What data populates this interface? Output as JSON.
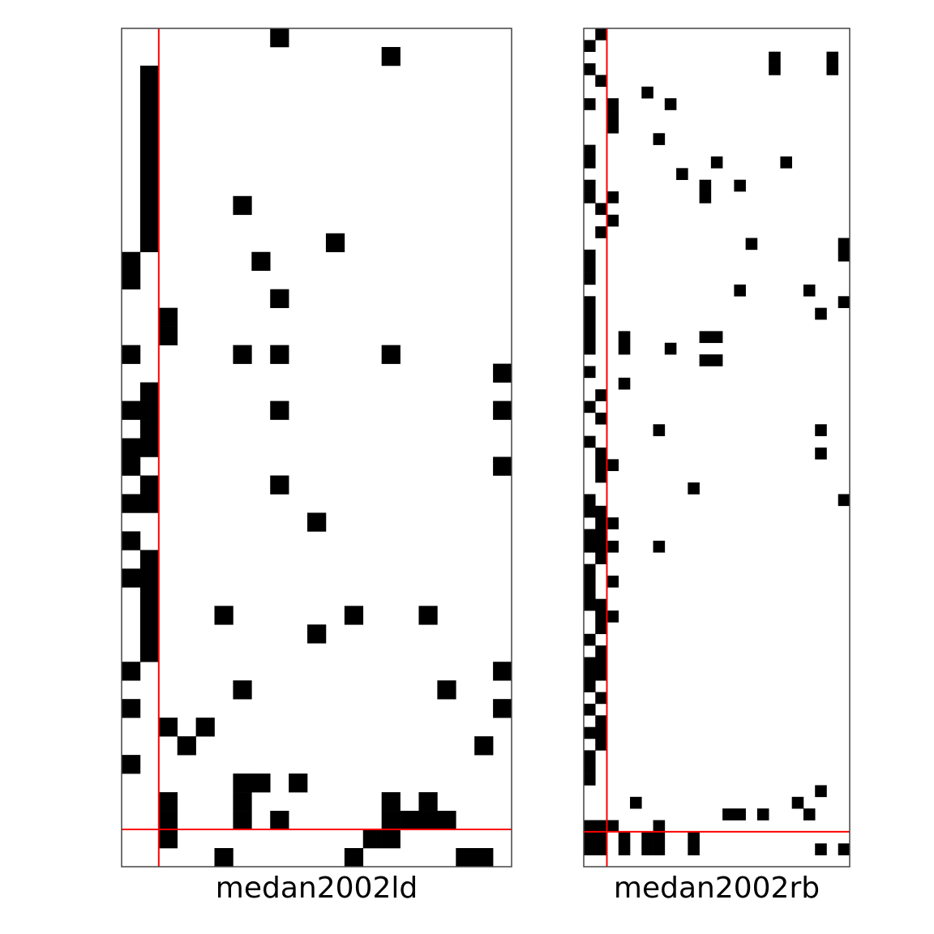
{
  "colors": {
    "cell": "#000000",
    "divider": "#ff0000",
    "frame": "#444444",
    "background": "#ffffff"
  },
  "chart_data": [
    {
      "type": "heatmap",
      "title": "medan2002ld",
      "n_rows": 45,
      "n_cols": 21,
      "row_split": 43,
      "col_split": 2,
      "cells": [
        [
          0,
          8
        ],
        [
          1,
          14
        ],
        [
          2,
          1
        ],
        [
          3,
          1
        ],
        [
          4,
          1
        ],
        [
          5,
          1
        ],
        [
          6,
          1
        ],
        [
          7,
          1
        ],
        [
          8,
          1
        ],
        [
          9,
          1
        ],
        [
          9,
          6
        ],
        [
          10,
          1
        ],
        [
          11,
          1
        ],
        [
          11,
          11
        ],
        [
          12,
          0
        ],
        [
          12,
          7
        ],
        [
          13,
          0
        ],
        [
          14,
          8
        ],
        [
          15,
          2
        ],
        [
          16,
          2
        ],
        [
          17,
          0
        ],
        [
          17,
          6
        ],
        [
          17,
          8
        ],
        [
          17,
          14
        ],
        [
          18,
          20
        ],
        [
          19,
          1
        ],
        [
          20,
          0
        ],
        [
          20,
          1
        ],
        [
          20,
          8
        ],
        [
          20,
          20
        ],
        [
          21,
          1
        ],
        [
          22,
          0
        ],
        [
          22,
          1
        ],
        [
          23,
          0
        ],
        [
          23,
          20
        ],
        [
          24,
          1
        ],
        [
          24,
          8
        ],
        [
          25,
          0
        ],
        [
          25,
          1
        ],
        [
          26,
          10
        ],
        [
          27,
          0
        ],
        [
          28,
          1
        ],
        [
          29,
          0
        ],
        [
          29,
          1
        ],
        [
          30,
          1
        ],
        [
          31,
          1
        ],
        [
          31,
          5
        ],
        [
          31,
          12
        ],
        [
          31,
          16
        ],
        [
          32,
          1
        ],
        [
          32,
          10
        ],
        [
          33,
          1
        ],
        [
          34,
          0
        ],
        [
          34,
          20
        ],
        [
          35,
          6
        ],
        [
          35,
          17
        ],
        [
          36,
          0
        ],
        [
          36,
          20
        ],
        [
          37,
          2
        ],
        [
          37,
          4
        ],
        [
          38,
          3
        ],
        [
          38,
          19
        ],
        [
          39,
          0
        ],
        [
          40,
          6
        ],
        [
          40,
          7
        ],
        [
          40,
          9
        ],
        [
          41,
          2
        ],
        [
          41,
          6
        ],
        [
          41,
          14
        ],
        [
          41,
          16
        ],
        [
          42,
          2
        ],
        [
          42,
          6
        ],
        [
          42,
          8
        ],
        [
          42,
          14
        ],
        [
          42,
          15
        ],
        [
          42,
          16
        ],
        [
          42,
          17
        ],
        [
          43,
          2
        ],
        [
          43,
          13
        ],
        [
          43,
          14
        ],
        [
          44,
          5
        ],
        [
          44,
          12
        ],
        [
          44,
          18
        ],
        [
          44,
          19
        ]
      ]
    },
    {
      "type": "heatmap",
      "title": "medan2002rb",
      "n_rows": 72,
      "n_cols": 23,
      "row_split": 69,
      "col_split": 2,
      "cells": [
        [
          0,
          1
        ],
        [
          1,
          0
        ],
        [
          2,
          16
        ],
        [
          2,
          21
        ],
        [
          3,
          0
        ],
        [
          3,
          16
        ],
        [
          3,
          21
        ],
        [
          4,
          1
        ],
        [
          5,
          5
        ],
        [
          6,
          0
        ],
        [
          6,
          2
        ],
        [
          6,
          7
        ],
        [
          7,
          2
        ],
        [
          8,
          2
        ],
        [
          9,
          6
        ],
        [
          10,
          0
        ],
        [
          11,
          0
        ],
        [
          11,
          11
        ],
        [
          11,
          17
        ],
        [
          12,
          8
        ],
        [
          13,
          0
        ],
        [
          13,
          10
        ],
        [
          13,
          13
        ],
        [
          14,
          0
        ],
        [
          14,
          2
        ],
        [
          14,
          10
        ],
        [
          15,
          1
        ],
        [
          16,
          2
        ],
        [
          17,
          1
        ],
        [
          18,
          14
        ],
        [
          18,
          22
        ],
        [
          19,
          0
        ],
        [
          19,
          22
        ],
        [
          20,
          0
        ],
        [
          21,
          0
        ],
        [
          22,
          13
        ],
        [
          22,
          19
        ],
        [
          23,
          0
        ],
        [
          23,
          22
        ],
        [
          24,
          0
        ],
        [
          24,
          20
        ],
        [
          25,
          0
        ],
        [
          26,
          0
        ],
        [
          26,
          3
        ],
        [
          26,
          10
        ],
        [
          26,
          11
        ],
        [
          27,
          0
        ],
        [
          27,
          3
        ],
        [
          27,
          7
        ],
        [
          28,
          10
        ],
        [
          28,
          11
        ],
        [
          29,
          0
        ],
        [
          30,
          3
        ],
        [
          31,
          1
        ],
        [
          32,
          0
        ],
        [
          33,
          1
        ],
        [
          34,
          6
        ],
        [
          34,
          20
        ],
        [
          35,
          0
        ],
        [
          36,
          1
        ],
        [
          36,
          20
        ],
        [
          37,
          1
        ],
        [
          37,
          2
        ],
        [
          38,
          1
        ],
        [
          39,
          9
        ],
        [
          40,
          0
        ],
        [
          40,
          22
        ],
        [
          41,
          0
        ],
        [
          41,
          1
        ],
        [
          42,
          1
        ],
        [
          42,
          2
        ],
        [
          43,
          0
        ],
        [
          43,
          1
        ],
        [
          44,
          0
        ],
        [
          44,
          1
        ],
        [
          44,
          2
        ],
        [
          44,
          6
        ],
        [
          45,
          1
        ],
        [
          46,
          0
        ],
        [
          47,
          0
        ],
        [
          47,
          2
        ],
        [
          48,
          0
        ],
        [
          49,
          0
        ],
        [
          49,
          1
        ],
        [
          50,
          1
        ],
        [
          50,
          2
        ],
        [
          51,
          1
        ],
        [
          52,
          0
        ],
        [
          53,
          1
        ],
        [
          54,
          0
        ],
        [
          54,
          1
        ],
        [
          55,
          0
        ],
        [
          55,
          1
        ],
        [
          56,
          0
        ],
        [
          57,
          1
        ],
        [
          58,
          0
        ],
        [
          59,
          1
        ],
        [
          60,
          0
        ],
        [
          60,
          1
        ],
        [
          61,
          1
        ],
        [
          62,
          0
        ],
        [
          63,
          0
        ],
        [
          64,
          0
        ],
        [
          65,
          20
        ],
        [
          66,
          4
        ],
        [
          66,
          18
        ],
        [
          67,
          12
        ],
        [
          67,
          13
        ],
        [
          67,
          15
        ],
        [
          67,
          19
        ],
        [
          68,
          0
        ],
        [
          68,
          1
        ],
        [
          68,
          2
        ],
        [
          68,
          6
        ],
        [
          69,
          0
        ],
        [
          69,
          1
        ],
        [
          69,
          3
        ],
        [
          69,
          5
        ],
        [
          69,
          6
        ],
        [
          69,
          9
        ],
        [
          70,
          0
        ],
        [
          70,
          1
        ],
        [
          70,
          3
        ],
        [
          70,
          5
        ],
        [
          70,
          6
        ],
        [
          70,
          9
        ],
        [
          70,
          20
        ],
        [
          70,
          22
        ]
      ]
    }
  ]
}
